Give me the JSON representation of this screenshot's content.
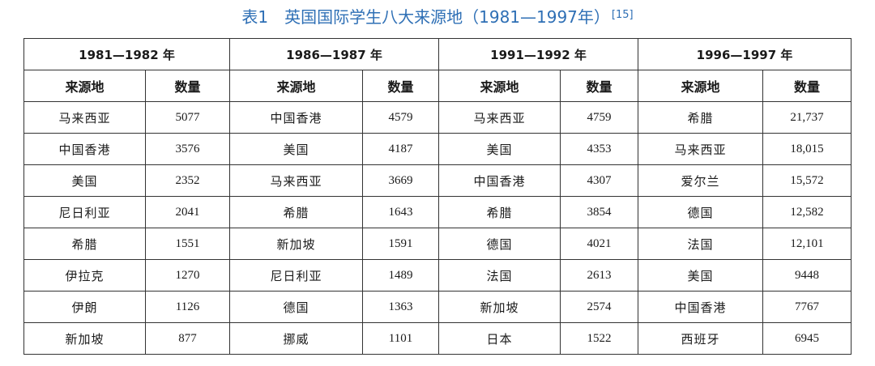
{
  "title": {
    "text": "表1　英国国际学生八大来源地（1981—1997年）",
    "ref": "[15]"
  },
  "table": {
    "periods": [
      "1981—1982 年",
      "1986—1987 年",
      "1991—1992 年",
      "1996—1997 年"
    ],
    "col_headers": {
      "source": "来源地",
      "count": "数量"
    },
    "rows": [
      [
        [
          "马来西亚",
          "5077"
        ],
        [
          "中国香港",
          "4579"
        ],
        [
          "马来西亚",
          "4759"
        ],
        [
          "希腊",
          "21,737"
        ]
      ],
      [
        [
          "中国香港",
          "3576"
        ],
        [
          "美国",
          "4187"
        ],
        [
          "美国",
          "4353"
        ],
        [
          "马来西亚",
          "18,015"
        ]
      ],
      [
        [
          "美国",
          "2352"
        ],
        [
          "马来西亚",
          "3669"
        ],
        [
          "中国香港",
          "4307"
        ],
        [
          "爱尔兰",
          "15,572"
        ]
      ],
      [
        [
          "尼日利亚",
          "2041"
        ],
        [
          "希腊",
          "1643"
        ],
        [
          "希腊",
          "3854"
        ],
        [
          "德国",
          "12,582"
        ]
      ],
      [
        [
          "希腊",
          "1551"
        ],
        [
          "新加坡",
          "1591"
        ],
        [
          "德国",
          "4021"
        ],
        [
          "法国",
          "12,101"
        ]
      ],
      [
        [
          "伊拉克",
          "1270"
        ],
        [
          "尼日利亚",
          "1489"
        ],
        [
          "法国",
          "2613"
        ],
        [
          "美国",
          "9448"
        ]
      ],
      [
        [
          "伊朗",
          "1126"
        ],
        [
          "德国",
          "1363"
        ],
        [
          "新加坡",
          "2574"
        ],
        [
          "中国香港",
          "7767"
        ]
      ],
      [
        [
          "新加坡",
          "877"
        ],
        [
          "挪威",
          "1101"
        ],
        [
          "日本",
          "1522"
        ],
        [
          "西班牙",
          "6945"
        ]
      ]
    ]
  }
}
